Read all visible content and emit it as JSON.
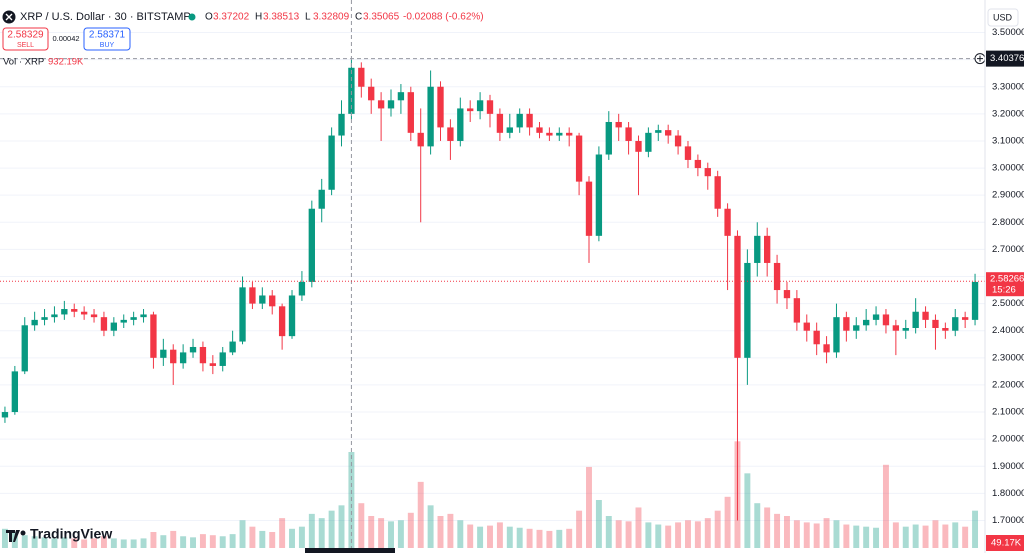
{
  "header": {
    "symbol": "XRP / U.S. Dollar · 30 · BITSTAMP",
    "ohlc": [
      {
        "label": "O",
        "value": "3.37202"
      },
      {
        "label": "H",
        "value": "3.38513"
      },
      {
        "label": "L",
        "value": "3.32809"
      },
      {
        "label": "C",
        "value": "3.35065"
      }
    ],
    "change": "-0.02088 (-0.62%)"
  },
  "trade": {
    "sell_price": "2.58329",
    "sell": "SELL",
    "spread": "0.00042",
    "buy_price": "2.58371",
    "buy": "BUY"
  },
  "volume_legend": {
    "label": "Vol · XRP",
    "value": "932.19K"
  },
  "currency": "USD",
  "brand": "TradingView",
  "chart_data": {
    "type": "candlestick",
    "up_color": "#089981",
    "down_color": "#f23645",
    "grid": true,
    "ylim": [
      1.58,
      3.62
    ],
    "yticks": [
      {
        "value": 1.7,
        "label": "1.70000"
      },
      {
        "value": 1.8,
        "label": "1.80000"
      },
      {
        "value": 1.9,
        "label": "1.90000"
      },
      {
        "value": 2.0,
        "label": "2.00000"
      },
      {
        "value": 2.1,
        "label": "2.10000"
      },
      {
        "value": 2.2,
        "label": "2.20000"
      },
      {
        "value": 2.3,
        "label": "2.30000"
      },
      {
        "value": 2.4,
        "label": "2.40000"
      },
      {
        "value": 2.5,
        "label": "2.50000"
      },
      {
        "value": 2.6,
        "label": "2.60000"
      },
      {
        "value": 2.7,
        "label": "2.70000"
      },
      {
        "value": 2.8,
        "label": "2.80000"
      },
      {
        "value": 2.9,
        "label": "2.90000"
      },
      {
        "value": 3.0,
        "label": "3.00000"
      },
      {
        "value": 3.1,
        "label": "3.10000"
      },
      {
        "value": 3.2,
        "label": "3.20000"
      },
      {
        "value": 3.3,
        "label": "3.30000"
      },
      {
        "value": 3.4,
        "label": "3.40000"
      },
      {
        "value": 3.5,
        "label": "3.50000"
      }
    ],
    "open": [
      2.08,
      2.1,
      2.25,
      2.42,
      2.44,
      2.45,
      2.46,
      2.48,
      2.47,
      2.46,
      2.45,
      2.4,
      2.43,
      2.44,
      2.45,
      2.46,
      2.3,
      2.33,
      2.28,
      2.32,
      2.34,
      2.28,
      2.27,
      2.32,
      2.36,
      2.56,
      2.5,
      2.53,
      2.49,
      2.38,
      2.53,
      2.58,
      2.85,
      2.92,
      3.12,
      3.2,
      3.37,
      3.3,
      3.25,
      3.22,
      3.25,
      3.28,
      3.13,
      3.08,
      3.3,
      3.15,
      3.1,
      3.22,
      3.21,
      3.25,
      3.2,
      3.13,
      3.15,
      3.2,
      3.15,
      3.13,
      3.12,
      3.13,
      3.12,
      2.95,
      2.75,
      3.05,
      3.17,
      3.15,
      3.1,
      3.06,
      3.13,
      3.14,
      3.12,
      3.08,
      3.03,
      3.0,
      2.97,
      2.85,
      2.75,
      2.3,
      2.65,
      2.75,
      2.65,
      2.55,
      2.52,
      2.43,
      2.4,
      2.35,
      2.32,
      2.45,
      2.4,
      2.42,
      2.44,
      2.46,
      2.42,
      2.4,
      2.41,
      2.47,
      2.44,
      2.41,
      2.4,
      2.45,
      2.44
    ],
    "high": [
      2.12,
      2.27,
      2.45,
      2.47,
      2.48,
      2.49,
      2.51,
      2.5,
      2.49,
      2.48,
      2.47,
      2.45,
      2.46,
      2.47,
      2.48,
      2.47,
      2.37,
      2.35,
      2.35,
      2.37,
      2.36,
      2.31,
      2.34,
      2.4,
      2.6,
      2.58,
      2.56,
      2.55,
      2.5,
      2.55,
      2.62,
      2.88,
      2.96,
      3.15,
      3.25,
      3.4,
      3.39,
      3.33,
      3.28,
      3.29,
      3.31,
      3.3,
      3.22,
      3.36,
      3.32,
      3.18,
      3.26,
      3.25,
      3.28,
      3.27,
      3.22,
      3.2,
      3.22,
      3.22,
      3.17,
      3.15,
      3.15,
      3.15,
      3.13,
      2.97,
      3.08,
      3.21,
      3.2,
      3.17,
      3.12,
      3.15,
      3.16,
      3.16,
      3.14,
      3.1,
      3.05,
      3.02,
      2.99,
      2.87,
      2.77,
      2.7,
      2.8,
      2.78,
      2.68,
      2.58,
      2.55,
      2.46,
      2.43,
      2.38,
      2.5,
      2.47,
      2.45,
      2.48,
      2.49,
      2.48,
      2.44,
      2.44,
      2.52,
      2.49,
      2.46,
      2.43,
      2.48,
      2.47,
      2.61
    ],
    "low": [
      2.06,
      2.09,
      2.24,
      2.4,
      2.42,
      2.43,
      2.44,
      2.45,
      2.44,
      2.43,
      2.38,
      2.38,
      2.41,
      2.42,
      2.43,
      2.26,
      2.27,
      2.2,
      2.26,
      2.3,
      2.25,
      2.24,
      2.25,
      2.31,
      2.35,
      2.48,
      2.48,
      2.46,
      2.33,
      2.37,
      2.51,
      2.56,
      2.8,
      2.9,
      3.08,
      3.18,
      3.26,
      3.2,
      3.1,
      3.19,
      3.2,
      3.1,
      2.8,
      3.05,
      3.1,
      3.03,
      3.08,
      3.17,
      3.18,
      3.15,
      3.1,
      3.11,
      3.13,
      3.12,
      3.11,
      3.1,
      3.1,
      3.08,
      2.9,
      2.65,
      2.73,
      3.03,
      3.1,
      3.05,
      2.9,
      3.04,
      3.1,
      3.09,
      3.05,
      3.0,
      2.97,
      2.92,
      2.82,
      2.55,
      1.7,
      2.2,
      2.6,
      2.6,
      2.5,
      2.48,
      2.4,
      2.36,
      2.31,
      2.28,
      2.3,
      2.36,
      2.37,
      2.4,
      2.42,
      2.39,
      2.31,
      2.37,
      2.39,
      2.41,
      2.33,
      2.37,
      2.38,
      2.41,
      2.42
    ],
    "close": [
      2.1,
      2.25,
      2.42,
      2.44,
      2.45,
      2.46,
      2.48,
      2.47,
      2.46,
      2.45,
      2.4,
      2.43,
      2.44,
      2.45,
      2.46,
      2.3,
      2.33,
      2.28,
      2.32,
      2.34,
      2.28,
      2.27,
      2.32,
      2.36,
      2.56,
      2.5,
      2.53,
      2.49,
      2.38,
      2.53,
      2.58,
      2.85,
      2.92,
      3.12,
      3.2,
      3.37,
      3.3,
      3.25,
      3.22,
      3.25,
      3.28,
      3.13,
      3.08,
      3.3,
      3.15,
      3.1,
      3.22,
      3.21,
      3.25,
      3.2,
      3.13,
      3.15,
      3.2,
      3.15,
      3.13,
      3.12,
      3.13,
      3.12,
      2.95,
      2.75,
      3.05,
      3.17,
      3.15,
      3.1,
      3.06,
      3.13,
      3.14,
      3.12,
      3.08,
      3.03,
      3.0,
      2.97,
      2.85,
      2.75,
      2.3,
      2.65,
      2.75,
      2.65,
      2.55,
      2.52,
      2.43,
      2.4,
      2.35,
      2.32,
      2.45,
      2.4,
      2.42,
      2.44,
      2.46,
      2.42,
      2.4,
      2.41,
      2.47,
      2.44,
      2.41,
      2.4,
      2.45,
      2.44,
      2.58
    ],
    "volume": [
      180,
      150,
      120,
      110,
      100,
      90,
      100,
      90,
      80,
      90,
      110,
      90,
      80,
      80,
      90,
      150,
      120,
      160,
      110,
      100,
      130,
      120,
      110,
      130,
      260,
      200,
      160,
      150,
      280,
      180,
      200,
      320,
      280,
      350,
      400,
      900,
      420,
      300,
      280,
      250,
      260,
      330,
      620,
      400,
      300,
      320,
      260,
      220,
      200,
      210,
      240,
      200,
      190,
      180,
      170,
      160,
      170,
      180,
      350,
      760,
      450,
      300,
      260,
      250,
      380,
      240,
      220,
      210,
      240,
      260,
      250,
      280,
      350,
      480,
      1000,
      700,
      420,
      380,
      320,
      300,
      260,
      240,
      230,
      280,
      260,
      220,
      210,
      200,
      190,
      780,
      240,
      200,
      220,
      210,
      260,
      220,
      240,
      200,
      350
    ],
    "vlim": [
      0,
      1200
    ],
    "crosshair_price": 3.40376,
    "crosshair_index": 35,
    "last_price": 2.58266,
    "countdown": "15:26",
    "last_volume": "49.17K"
  }
}
